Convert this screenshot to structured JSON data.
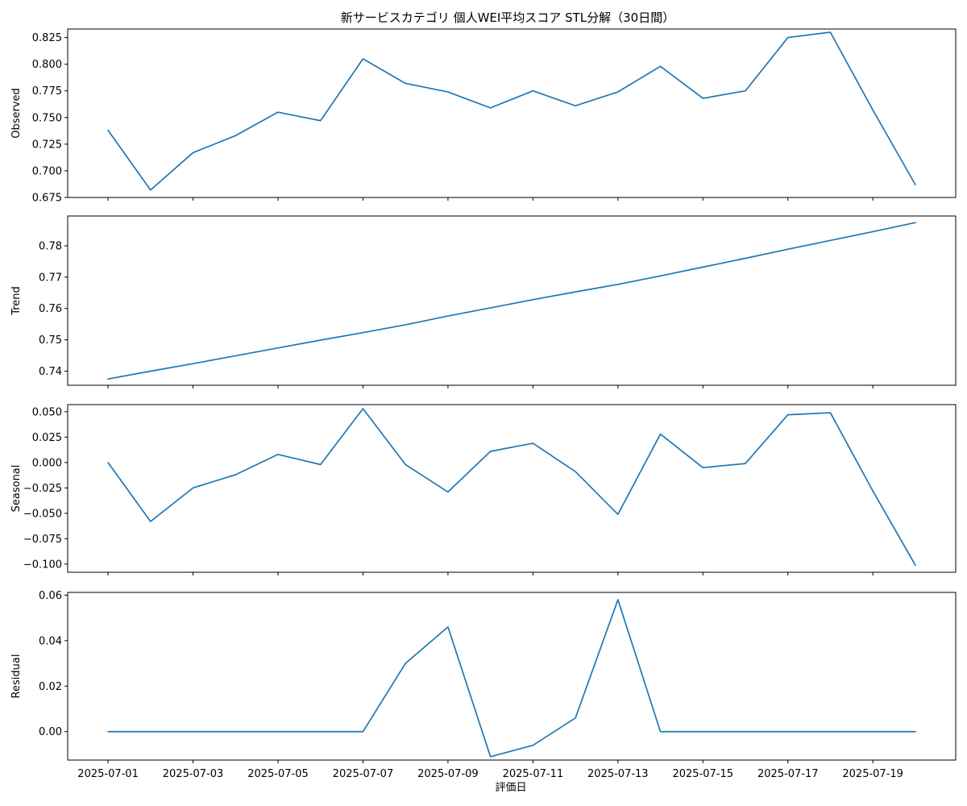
{
  "figure": {
    "title": "新サービスカテゴリ 個人WEI平均スコア STL分解（30日間）",
    "xlabel": "評価日"
  },
  "colors": {
    "line": "#1f77b4"
  },
  "chart_data": {
    "type": "line",
    "title": "新サービスカテゴリ 個人WEI平均スコア STL分解（30日間）",
    "xlabel": "評価日",
    "x": [
      "2025-07-01",
      "2025-07-02",
      "2025-07-03",
      "2025-07-04",
      "2025-07-05",
      "2025-07-06",
      "2025-07-07",
      "2025-07-08",
      "2025-07-09",
      "2025-07-10",
      "2025-07-11",
      "2025-07-12",
      "2025-07-13",
      "2025-07-14",
      "2025-07-15",
      "2025-07-16",
      "2025-07-17",
      "2025-07-18",
      "2025-07-19",
      "2025-07-20"
    ],
    "xticks": [
      "2025-07-01",
      "2025-07-03",
      "2025-07-05",
      "2025-07-07",
      "2025-07-09",
      "2025-07-11",
      "2025-07-13",
      "2025-07-15",
      "2025-07-17",
      "2025-07-19"
    ],
    "xlim": [
      "2025-06-30T01:12",
      "2025-07-20T22:48"
    ],
    "grid": false,
    "series": [
      {
        "name": "Observed",
        "ylabel": "Observed",
        "ylim": [
          0.675,
          0.833
        ],
        "yticks": [
          0.675,
          0.7,
          0.725,
          0.75,
          0.775,
          0.8,
          0.825
        ],
        "ytick_labels": [
          "0.675",
          "0.700",
          "0.725",
          "0.750",
          "0.775",
          "0.800",
          "0.825"
        ],
        "values": [
          0.738,
          0.682,
          0.717,
          0.733,
          0.755,
          0.747,
          0.805,
          0.782,
          0.774,
          0.759,
          0.775,
          0.761,
          0.774,
          0.798,
          0.768,
          0.775,
          0.825,
          0.83,
          0.757,
          0.687
        ]
      },
      {
        "name": "Trend",
        "ylabel": "Trend",
        "ylim": [
          0.7355,
          0.7895
        ],
        "yticks": [
          0.74,
          0.75,
          0.76,
          0.77,
          0.78
        ],
        "ytick_labels": [
          "0.74",
          "0.75",
          "0.76",
          "0.77",
          "0.78"
        ],
        "values": [
          0.7375,
          0.74,
          0.7424,
          0.7449,
          0.7474,
          0.7499,
          0.7523,
          0.7548,
          0.7576,
          0.7602,
          0.7628,
          0.7653,
          0.7677,
          0.7704,
          0.7732,
          0.776,
          0.7789,
          0.7817,
          0.7845,
          0.7874
        ]
      },
      {
        "name": "Seasonal",
        "ylabel": "Seasonal",
        "ylim": [
          -0.108,
          0.057
        ],
        "yticks": [
          -0.1,
          -0.075,
          -0.05,
          -0.025,
          0.0,
          0.025,
          0.05
        ],
        "ytick_labels": [
          "−0.100",
          "−0.075",
          "−0.050",
          "−0.025",
          "0.000",
          "0.025",
          "0.050"
        ],
        "values": [
          0.0,
          -0.058,
          -0.025,
          -0.012,
          0.008,
          -0.002,
          0.053,
          -0.002,
          -0.029,
          0.011,
          0.019,
          -0.009,
          -0.051,
          0.028,
          -0.005,
          -0.001,
          0.047,
          0.049,
          -0.028,
          -0.101
        ]
      },
      {
        "name": "Residual",
        "ylabel": "Residual",
        "ylim": [
          -0.0125,
          0.0612
        ],
        "yticks": [
          0.0,
          0.02,
          0.04,
          0.06
        ],
        "ytick_labels": [
          "0.00",
          "0.02",
          "0.04",
          "0.06"
        ],
        "values": [
          0.0,
          0.0,
          0.0,
          0.0,
          0.0,
          0.0,
          0.0,
          0.03,
          0.046,
          -0.011,
          -0.006,
          0.006,
          0.058,
          0.0,
          0.0,
          0.0,
          0.0,
          0.0,
          0.0,
          0.0
        ]
      }
    ]
  }
}
